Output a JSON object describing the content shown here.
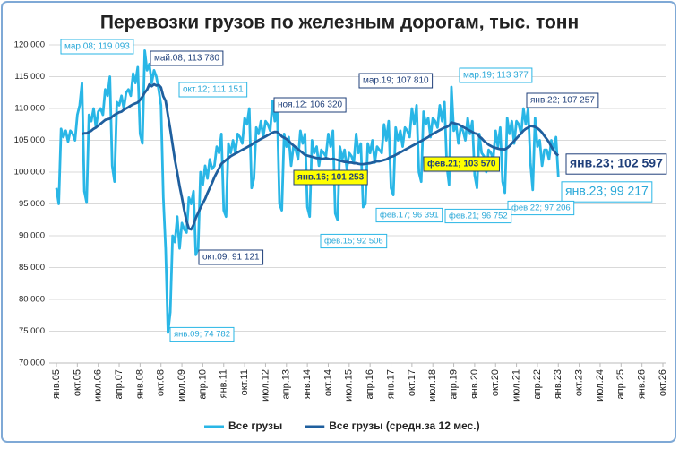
{
  "chart_data": {
    "type": "line",
    "title": "Перевозки грузов по железным дорогам, тыс. тонн",
    "categories": [
      "янв.05",
      null,
      null,
      null,
      null,
      null,
      null,
      null,
      null,
      "окт.05",
      null,
      null,
      null,
      null,
      null,
      null,
      null,
      null,
      "июл.06",
      null,
      null,
      null,
      null,
      null,
      null,
      null,
      null,
      "апр.07",
      null,
      null,
      null,
      null,
      null,
      null,
      null,
      null,
      "янв.08",
      null,
      null,
      null,
      null,
      null,
      null,
      null,
      null,
      "окт.08",
      null,
      null,
      null,
      null,
      null,
      null,
      null,
      null,
      "июл.09",
      null,
      null,
      null,
      null,
      null,
      null,
      null,
      null,
      "апр.10",
      null,
      null,
      null,
      null,
      null,
      null,
      null,
      null,
      "янв.11",
      null,
      null,
      null,
      null,
      null,
      null,
      null,
      null,
      "окт.11",
      null,
      null,
      null,
      null,
      null,
      null,
      null,
      null,
      "июл.12",
      null,
      null,
      null,
      null,
      null,
      null,
      null,
      null,
      "апр.13",
      null,
      null,
      null,
      null,
      null,
      null,
      null,
      null,
      "янв.14",
      null,
      null,
      null,
      null,
      null,
      null,
      null,
      null,
      "окт.14",
      null,
      null,
      null,
      null,
      null,
      null,
      null,
      null,
      "июл.15",
      null,
      null,
      null,
      null,
      null,
      null,
      null,
      null,
      "апр.16",
      null,
      null,
      null,
      null,
      null,
      null,
      null,
      null,
      "янв.17",
      null,
      null,
      null,
      null,
      null,
      null,
      null,
      null,
      "окт.17",
      null,
      null,
      null,
      null,
      null,
      null,
      null,
      null,
      "июл.18",
      null,
      null,
      null,
      null,
      null,
      null,
      null,
      null,
      "апр.19",
      null,
      null,
      null,
      null,
      null,
      null,
      null,
      null,
      "янв.20",
      null,
      null,
      null,
      null,
      null,
      null,
      null,
      null,
      "окт.20",
      null,
      null,
      null,
      null,
      null,
      null,
      null,
      null,
      "июл.21",
      null,
      null,
      null,
      null,
      null,
      null,
      null,
      null,
      "апр.22",
      null,
      null,
      null,
      null,
      null,
      null,
      null,
      null,
      "янв.23",
      null,
      null,
      null,
      null,
      null,
      null,
      null,
      null,
      "окт.23",
      null,
      null,
      null,
      null,
      null,
      null,
      null,
      null,
      "июл.24",
      null,
      null,
      null,
      null,
      null,
      null,
      null,
      null,
      "апр.25",
      null,
      null,
      null,
      null,
      null,
      null,
      null,
      null,
      "янв.26",
      null,
      null,
      null,
      null,
      null,
      null,
      null,
      null,
      "окт.26"
    ],
    "series": [
      {
        "name": "Все грузы",
        "color": "#29b6e6",
        "values": [
          97500,
          95000,
          106800,
          105500,
          106500,
          104800,
          106500,
          106000,
          105000,
          109000,
          110500,
          114000,
          97000,
          95200,
          109000,
          108000,
          110000,
          107000,
          109500,
          110000,
          109000,
          113000,
          112000,
          115000,
          101000,
          98500,
          111000,
          110500,
          112000,
          110000,
          112500,
          113000,
          112000,
          115500,
          114000,
          116500,
          106000,
          104500,
          119093,
          116000,
          117000,
          114000,
          116000,
          115000,
          113000,
          110500,
          96000,
          88000,
          74782,
          78000,
          90000,
          89000,
          93000,
          88000,
          92000,
          91000,
          90500,
          96000,
          95000,
          97000,
          87000,
          88000,
          100000,
          98000,
          101000,
          99000,
          102000,
          100500,
          101000,
          104000,
          103000,
          106000,
          94000,
          93000,
          104500,
          103000,
          105000,
          103000,
          106000,
          105500,
          104500,
          108500,
          107500,
          110000,
          97500,
          99000,
          107000,
          106000,
          108000,
          105500,
          108000,
          107500,
          106500,
          111151,
          108000,
          110000,
          95000,
          94000,
          106000,
          104000,
          105500,
          101000,
          104000,
          103500,
          102000,
          106500,
          104500,
          106000,
          94500,
          93000,
          105000,
          103000,
          104000,
          101000,
          103500,
          103000,
          102500,
          106000,
          104000,
          106500,
          93500,
          92506,
          104000,
          102000,
          103500,
          100500,
          103000,
          102500,
          101500,
          106000,
          103000,
          104500,
          94500,
          95000,
          104500,
          103000,
          105000,
          101500,
          104000,
          103500,
          103000,
          107500,
          105000,
          108000,
          97500,
          96391,
          107000,
          105000,
          106500,
          104000,
          107000,
          106500,
          105500,
          110000,
          107500,
          110500,
          100000,
          98500,
          109500,
          107500,
          108500,
          105500,
          108500,
          108000,
          107000,
          110500,
          108000,
          111000,
          101000,
          98000,
          113377,
          106500,
          107500,
          104500,
          107000,
          106500,
          105000,
          108500,
          106000,
          108000,
          99500,
          97500,
          106000,
          103000,
          102500,
          100000,
          103500,
          103000,
          102000,
          106500,
          104000,
          107000,
          98500,
          96752,
          108500,
          106000,
          108000,
          104500,
          108000,
          107500,
          106000,
          110000,
          107500,
          110000,
          101500,
          97206,
          108500,
          104000,
          105000,
          101000,
          103500,
          103500,
          102000,
          105000,
          103500,
          105500,
          99217,
          null,
          null,
          null,
          null,
          null,
          null,
          null,
          null,
          null,
          null,
          null,
          null,
          null,
          null,
          null,
          null,
          null,
          null,
          null,
          null,
          null,
          null,
          null,
          null,
          null,
          null,
          null,
          null,
          null,
          null,
          null,
          null,
          null,
          null,
          null,
          null,
          null,
          null,
          null,
          null,
          null,
          null,
          null,
          null,
          null
        ]
      },
      {
        "name": "Все грузы (средн.за 12 мес.)",
        "color": "#1f5f9e",
        "values": [
          null,
          null,
          null,
          null,
          null,
          null,
          null,
          null,
          null,
          null,
          null,
          106000,
          106100,
          106100,
          106300,
          106500,
          106800,
          107000,
          107300,
          107600,
          107900,
          108200,
          108300,
          108400,
          108700,
          109000,
          109200,
          109400,
          109500,
          109800,
          110000,
          110200,
          110450,
          110650,
          110800,
          110950,
          111350,
          111850,
          112500,
          112950,
          113780,
          113500,
          113800,
          113600,
          113700,
          113300,
          111900,
          111200,
          108900,
          106700,
          104300,
          101900,
          99900,
          97800,
          96000,
          94000,
          92300,
          91121,
          91000,
          91700,
          92800,
          93600,
          94400,
          95100,
          95800,
          96700,
          97500,
          98300,
          99200,
          99900,
          100600,
          101300,
          101600,
          101900,
          102200,
          102500,
          102700,
          102900,
          103100,
          103300,
          103500,
          103700,
          103900,
          104100,
          104300,
          104600,
          104800,
          105000,
          105200,
          105400,
          105600,
          105800,
          106000,
          106200,
          106320,
          106300,
          106000,
          105600,
          105400,
          105200,
          104900,
          104500,
          104200,
          103900,
          103600,
          103300,
          103000,
          102700,
          102600,
          102500,
          102400,
          102300,
          102200,
          102200,
          102100,
          102100,
          102200,
          102100,
          102000,
          102100,
          102000,
          101900,
          101800,
          101700,
          101600,
          101600,
          101500,
          101500,
          101400,
          101400,
          101300,
          101250,
          101253,
          101300,
          101350,
          101400,
          101500,
          101600,
          101700,
          101700,
          101800,
          101900,
          102000,
          102200,
          102400,
          102500,
          102700,
          102900,
          103100,
          103300,
          103500,
          103700,
          103900,
          104100,
          104300,
          104500,
          104700,
          104900,
          105100,
          105300,
          105500,
          105800,
          106000,
          106200,
          106400,
          106600,
          106800,
          107000,
          107100,
          107300,
          107810,
          107700,
          107600,
          107500,
          107300,
          107100,
          106900,
          106700,
          106500,
          106300,
          106100,
          106000,
          105600,
          105300,
          104900,
          104600,
          104300,
          104100,
          103900,
          103800,
          103700,
          103600,
          103600,
          103570,
          103800,
          104100,
          104500,
          104900,
          105300,
          105700,
          106100,
          106500,
          106800,
          107000,
          107257,
          107200,
          107100,
          106900,
          106600,
          106200,
          105700,
          105200,
          104700,
          104000,
          103400,
          102900,
          102597,
          null,
          null,
          null,
          null,
          null,
          null,
          null,
          null,
          null,
          null,
          null,
          null,
          null,
          null,
          null,
          null,
          null,
          null,
          null,
          null,
          null,
          null,
          null,
          null,
          null,
          null,
          null,
          null,
          null,
          null,
          null,
          null,
          null,
          null,
          null,
          null,
          null,
          null,
          null,
          null,
          null,
          null,
          null,
          null,
          null
        ]
      }
    ],
    "ylim": [
      70000,
      120000
    ],
    "yticks": [
      {
        "value": 70000,
        "label": "70 000"
      },
      {
        "value": 75000,
        "label": "75 000"
      },
      {
        "value": 80000,
        "label": "80 000"
      },
      {
        "value": 85000,
        "label": "85 000"
      },
      {
        "value": 90000,
        "label": "90 000"
      },
      {
        "value": 95000,
        "label": "95 000"
      },
      {
        "value": 100000,
        "label": "100 000"
      },
      {
        "value": 105000,
        "label": "105 000"
      },
      {
        "value": 110000,
        "label": "110 000"
      },
      {
        "value": 115000,
        "label": "115 000"
      },
      {
        "value": 120000,
        "label": "120 000"
      }
    ],
    "grid": true,
    "legend": "bottom",
    "annotations": [
      "мар.08; 119 093",
      "май.08; 113 780",
      "окт.12; 111 151",
      "ноя.12; 106 320",
      "мар.19; 107 810",
      "мар.19; 113 377",
      "янв.22; 107 257",
      "фев.21; 103 570",
      "янв.16; 101 253",
      "янв.23; 102 597",
      "янв.23; 99 217",
      "фев.22; 97 206",
      "фев.21; 96 752",
      "фев.17; 96 391",
      "фев.15; 92 506",
      "окт.09; 91 121",
      "янв.09; 74 782"
    ]
  }
}
